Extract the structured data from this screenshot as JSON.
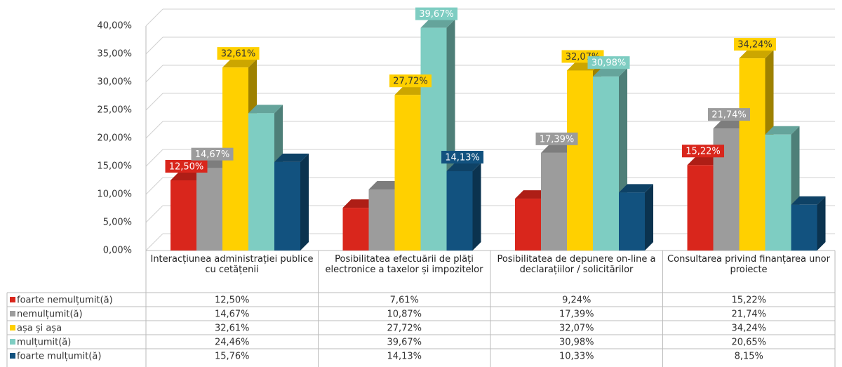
{
  "chart_data": {
    "type": "bar3d",
    "categories": [
      "Interacțiunea administrației publice cu cetățenii",
      "Posibilitatea efectuării de plăți electronice a taxelor și impozitelor",
      "Posibilitatea de depunere on-line a declarațiilor / solicitărilor",
      "Consultarea privind finanțarea unor proiecte"
    ],
    "series": [
      {
        "name": "foarte nemulțumit(ă)",
        "color": "#d9261c",
        "values": [
          12.5,
          7.61,
          9.24,
          15.22
        ],
        "value_labels": [
          "12,50%",
          "7,61%",
          "9,24%",
          "15,22%"
        ],
        "labels_shown": [
          true,
          false,
          false,
          true
        ]
      },
      {
        "name": "nemulțumit(ă)",
        "color": "#9c9c9c",
        "values": [
          14.67,
          10.87,
          17.39,
          21.74
        ],
        "value_labels": [
          "14,67%",
          "10,87%",
          "17,39%",
          "21,74%"
        ],
        "labels_shown": [
          true,
          false,
          true,
          true
        ]
      },
      {
        "name": "așa și așa",
        "color": "#ffd000",
        "values": [
          32.61,
          27.72,
          32.07,
          34.24
        ],
        "value_labels": [
          "32,61%",
          "27,72%",
          "32,07%",
          "34,24%"
        ],
        "labels_shown": [
          true,
          true,
          true,
          true
        ]
      },
      {
        "name": "mulțumit(ă)",
        "color": "#7ecdc2",
        "values": [
          24.46,
          39.67,
          30.98,
          20.65
        ],
        "value_labels": [
          "24,46%",
          "39,67%",
          "30,98%",
          "20,65%"
        ],
        "labels_shown": [
          false,
          true,
          true,
          false
        ]
      },
      {
        "name": "foarte mulțumit(ă)",
        "color": "#12527f",
        "values": [
          15.76,
          14.13,
          10.33,
          8.15
        ],
        "value_labels": [
          "15,76%",
          "14,13%",
          "10,33%",
          "8,15%"
        ],
        "labels_shown": [
          false,
          true,
          false,
          false
        ]
      }
    ],
    "ylim": [
      0,
      40
    ],
    "yticks": [
      {
        "value": 0,
        "label": "0,00%"
      },
      {
        "value": 5,
        "label": "5,00%"
      },
      {
        "value": 10,
        "label": "10,00%"
      },
      {
        "value": 15,
        "label": "15,00%"
      },
      {
        "value": 20,
        "label": "20,00%"
      },
      {
        "value": 25,
        "label": "25,00%"
      },
      {
        "value": 30,
        "label": "30,00%"
      },
      {
        "value": 35,
        "label": "35,00%"
      },
      {
        "value": 40,
        "label": "40,00%"
      }
    ],
    "grid": true
  }
}
